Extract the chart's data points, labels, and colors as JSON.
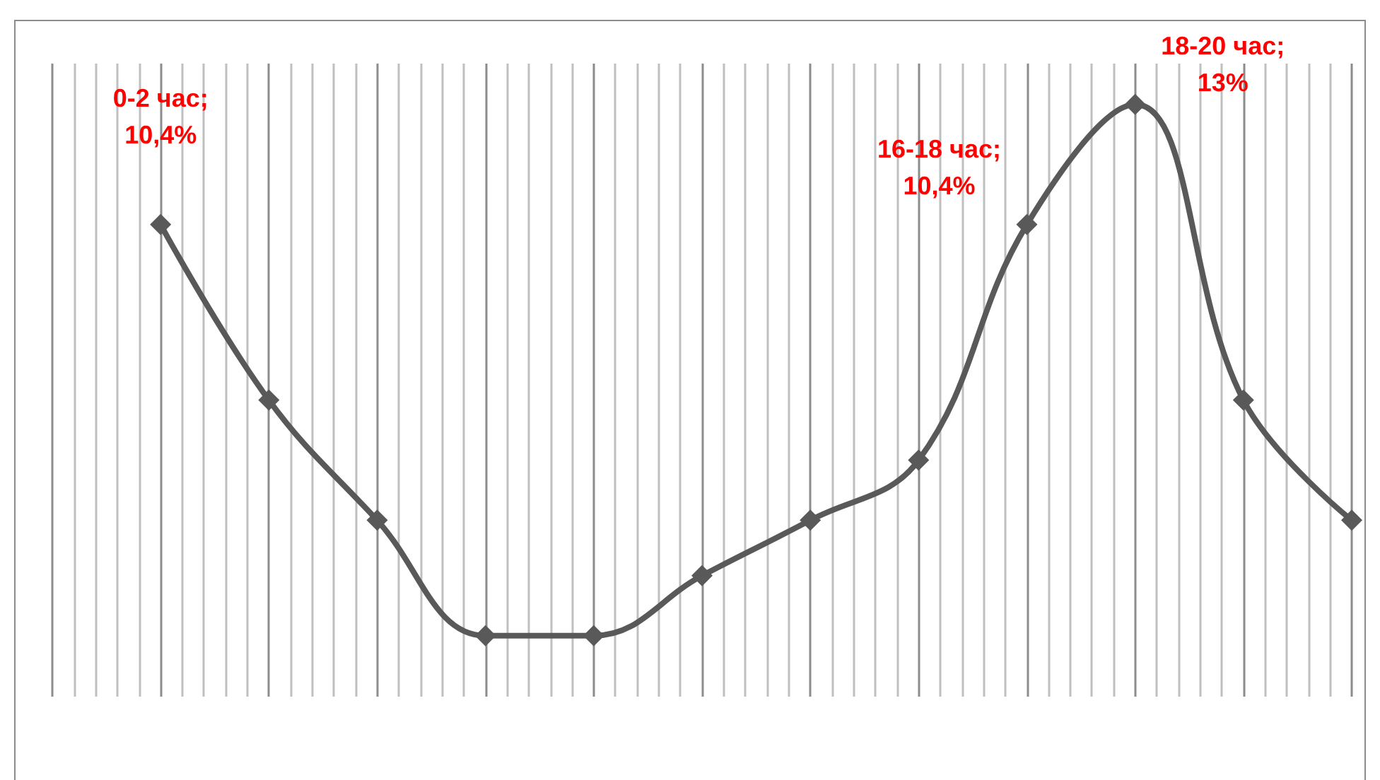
{
  "chart_data": {
    "type": "line",
    "categories": [
      null,
      null,
      null,
      null,
      null,
      null,
      null,
      null,
      null,
      null,
      null,
      null
    ],
    "series": [
      {
        "color": "#595959",
        "values": [
          10.4,
          6.6,
          4.0,
          1.5,
          1.5,
          2.8,
          4.0,
          5.3,
          10.4,
          13,
          6.6,
          4.0
        ],
        "value_labels": [
          "0-2 час; 10,4%",
          null,
          null,
          null,
          null,
          null,
          null,
          null,
          "16-18 час; 10,4%",
          "18-20 час; 13%",
          null,
          null
        ]
      }
    ],
    "marker": "diamond",
    "grid": "x",
    "tick_labels": false
  }
}
